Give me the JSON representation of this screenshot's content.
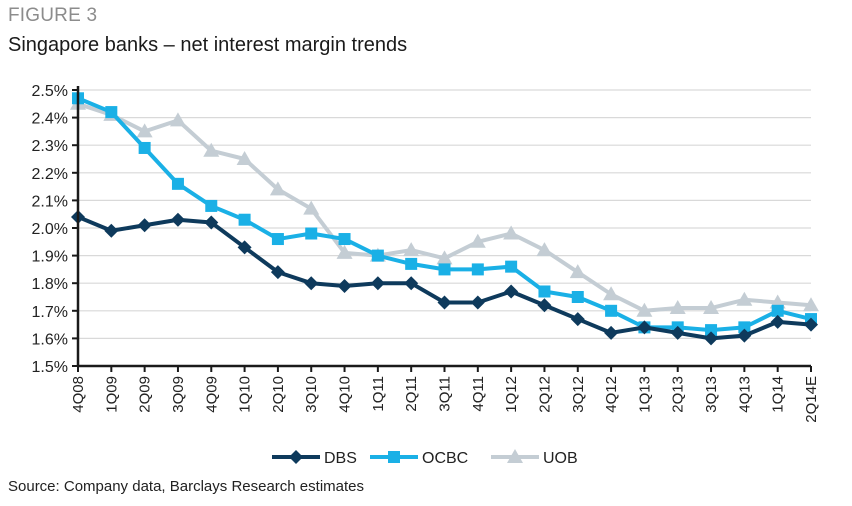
{
  "figure_label": "FIGURE 3",
  "source": "Source: Company data, Barclays Research estimates",
  "chart_data": {
    "type": "line",
    "title": "Singapore banks – net interest margin trends",
    "xlabel": "",
    "ylabel": "",
    "ylim": [
      1.5,
      2.5
    ],
    "ytick_step": 0.1,
    "ytick_format": "percent_1dp",
    "grid": true,
    "legend_position": "bottom-center",
    "categories": [
      "4Q08",
      "1Q09",
      "2Q09",
      "3Q09",
      "4Q09",
      "1Q10",
      "2Q10",
      "3Q10",
      "4Q10",
      "1Q11",
      "2Q11",
      "3Q11",
      "4Q11",
      "1Q12",
      "2Q12",
      "3Q12",
      "4Q12",
      "1Q13",
      "2Q13",
      "3Q13",
      "4Q13",
      "1Q14",
      "2Q14E"
    ],
    "series": [
      {
        "name": "DBS",
        "color": "#0e3a5c",
        "marker": "diamond",
        "values": [
          2.04,
          1.99,
          2.01,
          2.03,
          2.02,
          1.93,
          1.84,
          1.8,
          1.79,
          1.8,
          1.8,
          1.73,
          1.73,
          1.77,
          1.72,
          1.67,
          1.62,
          1.64,
          1.62,
          1.6,
          1.61,
          1.66,
          1.65
        ]
      },
      {
        "name": "OCBC",
        "color": "#1ab0e6",
        "marker": "square",
        "values": [
          2.47,
          2.42,
          2.29,
          2.16,
          2.08,
          2.03,
          1.96,
          1.98,
          1.96,
          1.9,
          1.87,
          1.85,
          1.85,
          1.86,
          1.77,
          1.75,
          1.7,
          1.64,
          1.64,
          1.63,
          1.64,
          1.7,
          1.67
        ]
      },
      {
        "name": "UOB",
        "color": "#c4cdd4",
        "marker": "triangle",
        "values": [
          2.45,
          2.41,
          2.35,
          2.39,
          2.28,
          2.25,
          2.14,
          2.07,
          1.91,
          1.9,
          1.92,
          1.89,
          1.95,
          1.98,
          1.92,
          1.84,
          1.76,
          1.7,
          1.71,
          1.71,
          1.74,
          1.73,
          1.72
        ]
      }
    ]
  }
}
